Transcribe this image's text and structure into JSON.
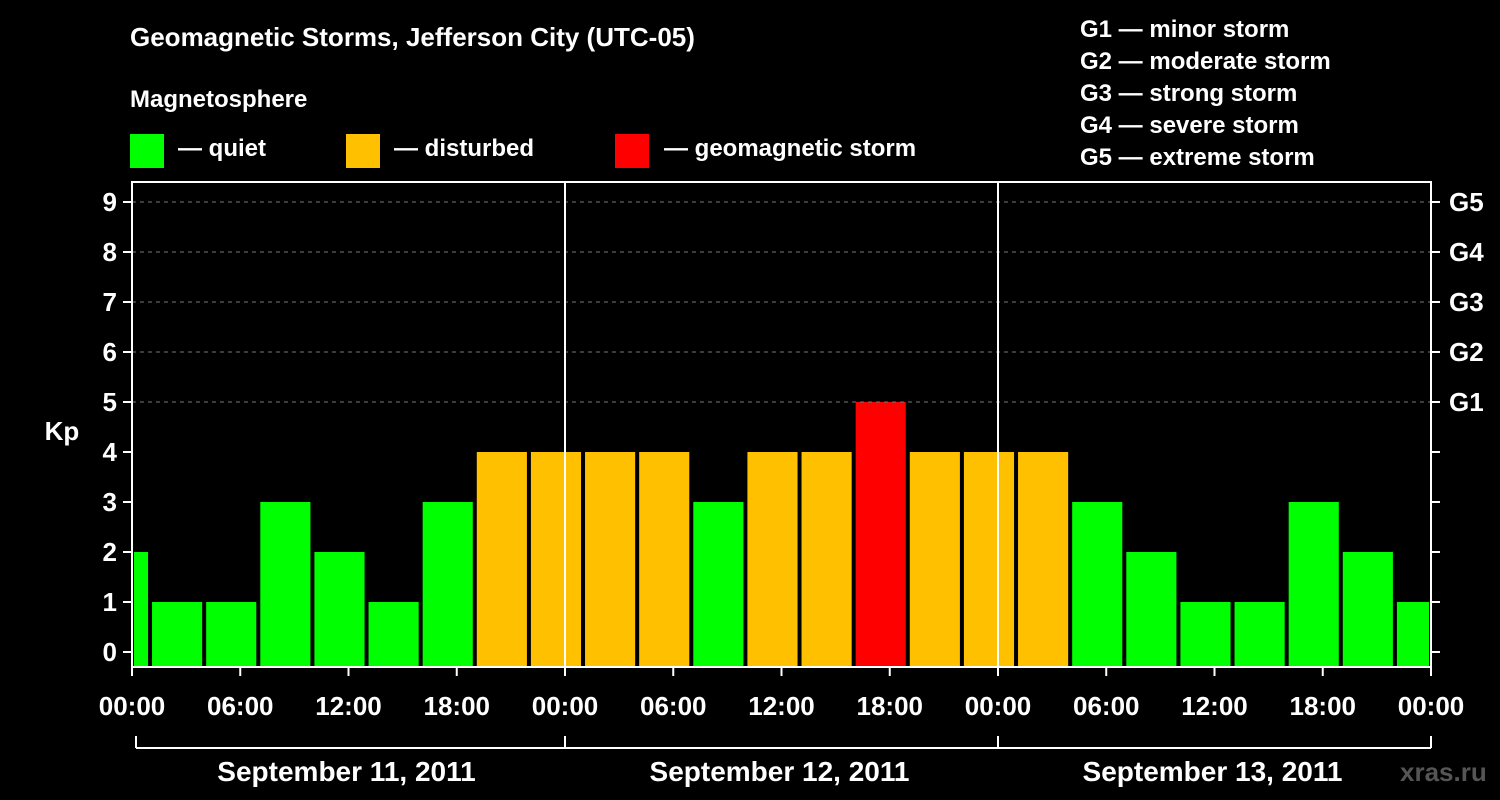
{
  "title": "Geomagnetic Storms, Jefferson City (UTC-05)",
  "legend": {
    "heading": "Magnetosphere",
    "items": [
      {
        "label": "— quiet",
        "color": "#00ff00"
      },
      {
        "label": "— disturbed",
        "color": "#ffc000"
      },
      {
        "label": "— geomagnetic storm",
        "color": "#ff0000"
      }
    ]
  },
  "storm_scale": [
    "G1 — minor storm",
    "G2 — moderate storm",
    "G3 — strong storm",
    "G4 — severe storm",
    "G5 — extreme storm"
  ],
  "watermark": "xras.ru",
  "chart_data": {
    "type": "bar",
    "ylabel": "Kp",
    "ylim": [
      0,
      9
    ],
    "yticks": [
      0,
      1,
      2,
      3,
      4,
      5,
      6,
      7,
      8,
      9
    ],
    "right_ticks": [
      {
        "value": 5,
        "label": "G1"
      },
      {
        "value": 6,
        "label": "G2"
      },
      {
        "value": 7,
        "label": "G3"
      },
      {
        "value": 8,
        "label": "G4"
      },
      {
        "value": 9,
        "label": "G5"
      }
    ],
    "x_range_hours": [
      0,
      72
    ],
    "xtick_hours": [
      0,
      6,
      12,
      18,
      24,
      30,
      36,
      42,
      48,
      54,
      60,
      66,
      72
    ],
    "xtick_labels": [
      "00:00",
      "06:00",
      "12:00",
      "18:00",
      "00:00",
      "06:00",
      "12:00",
      "18:00",
      "00:00",
      "06:00",
      "12:00",
      "18:00",
      "00:00"
    ],
    "days": [
      "September 11, 2011",
      "September 12, 2011",
      "September 13, 2011"
    ],
    "bars": [
      {
        "start": 0,
        "end": 1,
        "value": 2,
        "status": "quiet"
      },
      {
        "start": 1,
        "end": 4,
        "value": 1,
        "status": "quiet"
      },
      {
        "start": 4,
        "end": 7,
        "value": 1,
        "status": "quiet"
      },
      {
        "start": 7,
        "end": 10,
        "value": 3,
        "status": "quiet"
      },
      {
        "start": 10,
        "end": 13,
        "value": 2,
        "status": "quiet"
      },
      {
        "start": 13,
        "end": 16,
        "value": 1,
        "status": "quiet"
      },
      {
        "start": 16,
        "end": 19,
        "value": 3,
        "status": "quiet"
      },
      {
        "start": 19,
        "end": 22,
        "value": 4,
        "status": "disturbed"
      },
      {
        "start": 22,
        "end": 25,
        "value": 4,
        "status": "disturbed"
      },
      {
        "start": 25,
        "end": 28,
        "value": 4,
        "status": "disturbed"
      },
      {
        "start": 28,
        "end": 31,
        "value": 4,
        "status": "disturbed"
      },
      {
        "start": 31,
        "end": 34,
        "value": 3,
        "status": "quiet"
      },
      {
        "start": 34,
        "end": 37,
        "value": 4,
        "status": "disturbed"
      },
      {
        "start": 37,
        "end": 40,
        "value": 4,
        "status": "disturbed"
      },
      {
        "start": 40,
        "end": 43,
        "value": 5,
        "status": "storm"
      },
      {
        "start": 43,
        "end": 46,
        "value": 4,
        "status": "disturbed"
      },
      {
        "start": 46,
        "end": 49,
        "value": 4,
        "status": "disturbed"
      },
      {
        "start": 49,
        "end": 52,
        "value": 4,
        "status": "disturbed"
      },
      {
        "start": 52,
        "end": 55,
        "value": 3,
        "status": "quiet"
      },
      {
        "start": 55,
        "end": 58,
        "value": 2,
        "status": "quiet"
      },
      {
        "start": 58,
        "end": 61,
        "value": 1,
        "status": "quiet"
      },
      {
        "start": 61,
        "end": 64,
        "value": 1,
        "status": "quiet"
      },
      {
        "start": 64,
        "end": 67,
        "value": 3,
        "status": "quiet"
      },
      {
        "start": 67,
        "end": 70,
        "value": 2,
        "status": "quiet"
      },
      {
        "start": 70,
        "end": 72,
        "value": 1,
        "status": "quiet"
      }
    ],
    "status_colors": {
      "quiet": "#00ff00",
      "disturbed": "#ffc000",
      "storm": "#ff0000"
    }
  }
}
